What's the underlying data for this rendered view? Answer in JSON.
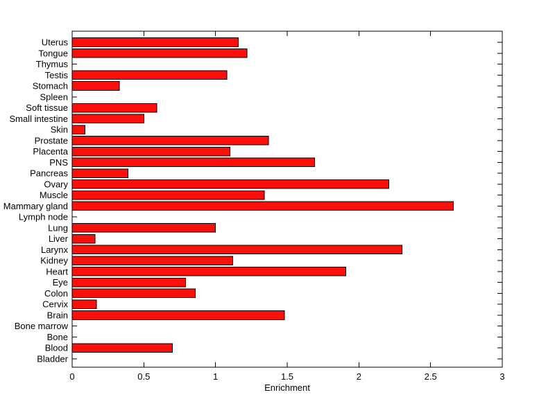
{
  "colors": {
    "bar_fill": "#FA0F0A",
    "bar_edge": "#000000",
    "axis": "#000000",
    "text": "#000000",
    "background": "#FFFFFF"
  },
  "chart_data": {
    "type": "bar",
    "orientation": "horizontal",
    "title": "",
    "xlabel": "Enrichment",
    "ylabel": "",
    "xlim": [
      0,
      3
    ],
    "xticks": [
      0,
      0.5,
      1,
      1.5,
      2,
      2.5,
      3
    ],
    "xtick_labels": [
      "0",
      "0.5",
      "1",
      "1.5",
      "2",
      "2.5",
      "3"
    ],
    "grid": false,
    "legend": null,
    "categories": [
      "Uterus",
      "Tongue",
      "Thymus",
      "Testis",
      "Stomach",
      "Spleen",
      "Soft tissue",
      "Small intestine",
      "Skin",
      "Prostate",
      "Placenta",
      "PNS",
      "Pancreas",
      "Ovary",
      "Muscle",
      "Mammary gland",
      "Lymph node",
      "Lung",
      "Liver",
      "Larynx",
      "Kidney",
      "Heart",
      "Eye",
      "Colon",
      "Cervix",
      "Brain",
      "Bone marrow",
      "Bone",
      "Blood",
      "Bladder"
    ],
    "values": [
      1.16,
      1.22,
      0,
      1.08,
      0.33,
      0,
      0.59,
      0.5,
      0.09,
      1.37,
      1.1,
      1.69,
      0.39,
      2.21,
      1.34,
      2.66,
      0,
      1.0,
      0.16,
      2.3,
      1.12,
      1.91,
      0.79,
      0.86,
      0.17,
      1.48,
      0,
      0,
      0.7,
      0
    ]
  }
}
